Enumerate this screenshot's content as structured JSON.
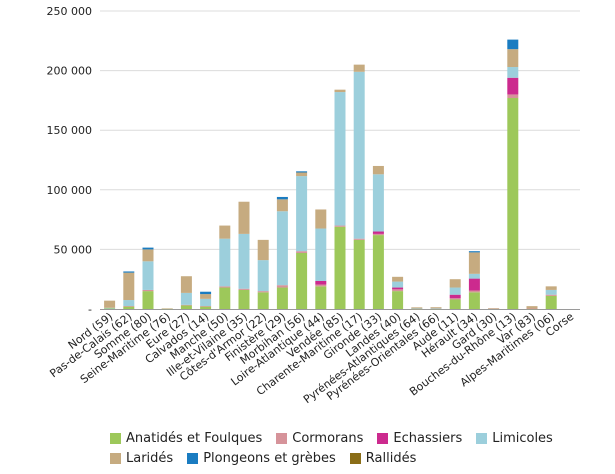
{
  "chart_data": {
    "type": "bar",
    "stacked": true,
    "title": "",
    "xlabel": "",
    "ylabel": "",
    "ylim": [
      0,
      250000
    ],
    "yticks": [
      0,
      50000,
      100000,
      150000,
      200000,
      250000
    ],
    "ytick_labels": [
      "-",
      "50 000",
      "100 000",
      "150 000",
      "200 000",
      "250 000"
    ],
    "grid": "horizontal",
    "categories": [
      "Nord (59)",
      "Pas-de-Calais (62)",
      "Somme (80)",
      "Seine-Maritime (76)",
      "Eure (27)",
      "Calvados (14)",
      "Manche (50)",
      "Ille-et-Vilaine (35)",
      "Côtes-d'Armor (22)",
      "Finistère (29)",
      "Morbihan (56)",
      "Loire-Atlantique (44)",
      "Vendée (85)",
      "Charente-Maritime (17)",
      "Gironde (33)",
      "Landes (40)",
      "Pyrénées-Atlantiques (64)",
      "Pyrénées-Orientales (66)",
      "Aude (11)",
      "Hérault (34)",
      "Gard (30)",
      "Bouches-du-Rhône (13)",
      "Var (83)",
      "Alpes-Maritimes (06)",
      "Corse"
    ],
    "series": [
      {
        "name": "Anatidés et Foulques",
        "color": "#9dc85a",
        "values": [
          500,
          2000,
          15000,
          300,
          3000,
          2000,
          18000,
          16000,
          14000,
          18000,
          47000,
          19000,
          69000,
          58000,
          62000,
          15000,
          200,
          300,
          8000,
          14000,
          400,
          177000,
          300,
          11000,
          0
        ]
      },
      {
        "name": "Cormorans",
        "color": "#d6939a",
        "values": [
          0,
          500,
          1000,
          0,
          500,
          500,
          1000,
          1000,
          1000,
          2000,
          1500,
          1500,
          1000,
          1000,
          1000,
          1500,
          100,
          100,
          1000,
          1500,
          100,
          3000,
          100,
          1000,
          0
        ]
      },
      {
        "name": "Echassiers",
        "color": "#cc2a8e",
        "values": [
          0,
          0,
          0,
          0,
          0,
          0,
          0,
          0,
          0,
          0,
          0,
          3000,
          0,
          0,
          2000,
          1500,
          0,
          0,
          3000,
          10000,
          0,
          14000,
          0,
          0,
          0
        ]
      },
      {
        "name": "Limicoles",
        "color": "#9ccfdc",
        "values": [
          500,
          5000,
          24000,
          0,
          10000,
          6000,
          40000,
          46000,
          26000,
          62000,
          63000,
          44000,
          112000,
          140000,
          48000,
          5000,
          100,
          100,
          6000,
          4000,
          0,
          9000,
          0,
          4000,
          0
        ]
      },
      {
        "name": "Laridés",
        "color": "#c6ab80",
        "values": [
          6000,
          23000,
          10000,
          200,
          14000,
          4000,
          11000,
          27000,
          17000,
          10000,
          3000,
          16000,
          2000,
          6000,
          7000,
          4000,
          1000,
          1000,
          7000,
          18000,
          100,
          15000,
          2000,
          3000,
          0
        ]
      },
      {
        "name": "Plongeons et grèbes",
        "color": "#1a7cc1",
        "values": [
          0,
          1000,
          1500,
          0,
          0,
          2000,
          0,
          0,
          0,
          2000,
          1000,
          0,
          0,
          0,
          0,
          0,
          0,
          0,
          0,
          1000,
          0,
          8000,
          0,
          0,
          0
        ]
      },
      {
        "name": "Rallidés",
        "color": "#8a6d17",
        "values": [
          0,
          0,
          0,
          0,
          0,
          0,
          0,
          0,
          0,
          0,
          0,
          0,
          0,
          0,
          0,
          0,
          0,
          0,
          0,
          0,
          0,
          0,
          0,
          0,
          0
        ]
      }
    ],
    "legend_position": "bottom"
  },
  "legend": {
    "row1": [
      "Anatidés et Foulques",
      "Cormorans",
      "Echassiers",
      "Limicoles"
    ],
    "row2": [
      "Laridés",
      "Plongeons et grèbes",
      "Rallidés"
    ]
  }
}
